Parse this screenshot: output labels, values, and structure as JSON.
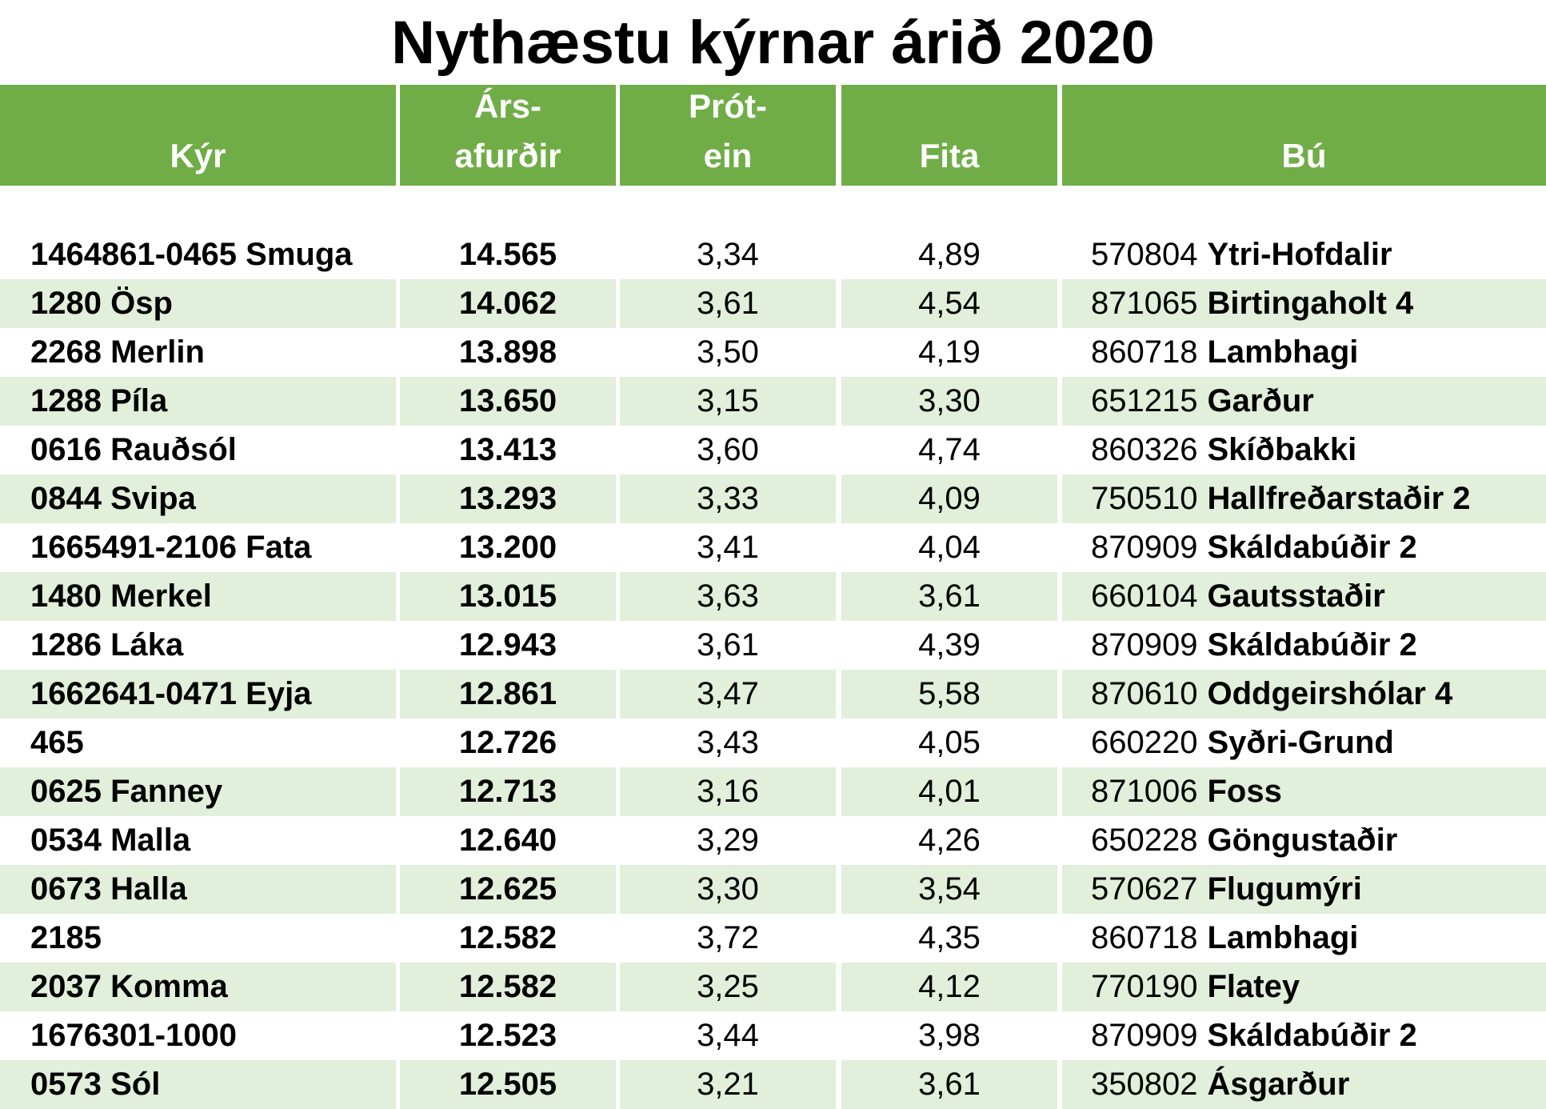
{
  "title": "Nythæstu kýrnar árið 2020",
  "colors": {
    "header_bg": "#70ad47",
    "header_text": "#ffffff",
    "alt_row_bg": "#e2efda"
  },
  "headers": {
    "kyr": {
      "line1": "",
      "line2": "Kýr"
    },
    "arsafurdir": {
      "line1": "Árs-",
      "line2": "afurðir"
    },
    "protein": {
      "line1": "Prót-",
      "line2": "ein"
    },
    "fita": {
      "line1": "",
      "line2": "Fita"
    },
    "bu": {
      "line1": "",
      "line2": "Bú"
    }
  },
  "rows": [
    {
      "kyr": "1464861-0465 Smuga",
      "arsafurdir": "14.565",
      "protein": "3,34",
      "fita": "4,89",
      "bu_num": "570804",
      "bu_name": "Ytri-Hofdalir"
    },
    {
      "kyr": "1280 Ösp",
      "arsafurdir": "14.062",
      "protein": "3,61",
      "fita": "4,54",
      "bu_num": "871065",
      "bu_name": "Birtingaholt 4"
    },
    {
      "kyr": "2268 Merlin",
      "arsafurdir": "13.898",
      "protein": "3,50",
      "fita": "4,19",
      "bu_num": "860718",
      "bu_name": "Lambhagi"
    },
    {
      "kyr": "1288 Píla",
      "arsafurdir": "13.650",
      "protein": "3,15",
      "fita": "3,30",
      "bu_num": "651215",
      "bu_name": "Garður"
    },
    {
      "kyr": "0616 Rauðsól",
      "arsafurdir": "13.413",
      "protein": "3,60",
      "fita": "4,74",
      "bu_num": "860326",
      "bu_name": "Skíðbakki"
    },
    {
      "kyr": "0844 Svipa",
      "arsafurdir": "13.293",
      "protein": "3,33",
      "fita": "4,09",
      "bu_num": "750510",
      "bu_name": "Hallfreðarstaðir 2"
    },
    {
      "kyr": "1665491-2106 Fata",
      "arsafurdir": "13.200",
      "protein": "3,41",
      "fita": "4,04",
      "bu_num": "870909",
      "bu_name": "Skáldabúðir 2"
    },
    {
      "kyr": "1480 Merkel",
      "arsafurdir": "13.015",
      "protein": "3,63",
      "fita": "3,61",
      "bu_num": "660104",
      "bu_name": "Gautsstaðir"
    },
    {
      "kyr": "1286 Láka",
      "arsafurdir": "12.943",
      "protein": "3,61",
      "fita": "4,39",
      "bu_num": "870909",
      "bu_name": "Skáldabúðir 2"
    },
    {
      "kyr": "1662641-0471 Eyja",
      "arsafurdir": "12.861",
      "protein": "3,47",
      "fita": "5,58",
      "bu_num": "870610",
      "bu_name": "Oddgeirshólar 4"
    },
    {
      "kyr": "465",
      "arsafurdir": "12.726",
      "protein": "3,43",
      "fita": "4,05",
      "bu_num": "660220",
      "bu_name": "Syðri-Grund"
    },
    {
      "kyr": "0625 Fanney",
      "arsafurdir": "12.713",
      "protein": "3,16",
      "fita": "4,01",
      "bu_num": "871006",
      "bu_name": "Foss"
    },
    {
      "kyr": "0534 Malla",
      "arsafurdir": "12.640",
      "protein": "3,29",
      "fita": "4,26",
      "bu_num": "650228",
      "bu_name": "Göngustaðir"
    },
    {
      "kyr": "0673 Halla",
      "arsafurdir": "12.625",
      "protein": "3,30",
      "fita": "3,54",
      "bu_num": "570627",
      "bu_name": "Flugumýri"
    },
    {
      "kyr": "2185",
      "arsafurdir": "12.582",
      "protein": "3,72",
      "fita": "4,35",
      "bu_num": "860718",
      "bu_name": "Lambhagi"
    },
    {
      "kyr": "2037 Komma",
      "arsafurdir": "12.582",
      "protein": "3,25",
      "fita": "4,12",
      "bu_num": "770190",
      "bu_name": "Flatey"
    },
    {
      "kyr": "1676301-1000",
      "arsafurdir": "12.523",
      "protein": "3,44",
      "fita": "3,98",
      "bu_num": "870909",
      "bu_name": "Skáldabúðir 2"
    },
    {
      "kyr": "0573 Sól",
      "arsafurdir": "12.505",
      "protein": "3,21",
      "fita": "3,61",
      "bu_num": "350802",
      "bu_name": "Ásgarður"
    }
  ]
}
